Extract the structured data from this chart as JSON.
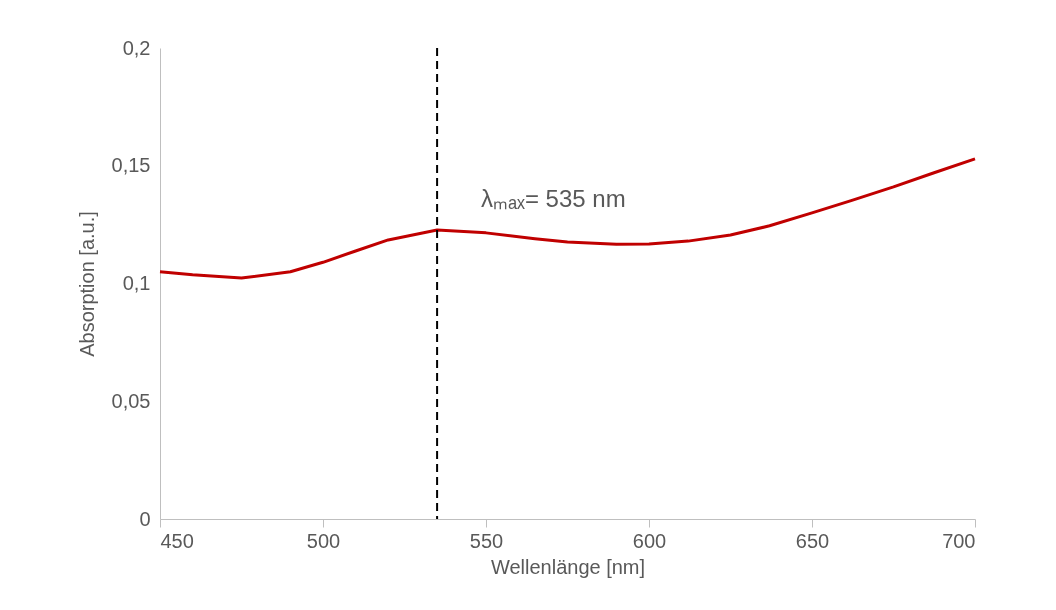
{
  "chart_data": {
    "type": "line",
    "xlabel": "Wellenlänge [nm]",
    "ylabel": "Absorption [a.u.]",
    "x": [
      450,
      460,
      475,
      490,
      500,
      510,
      520,
      535,
      550,
      565,
      575,
      590,
      600,
      612,
      625,
      637,
      650,
      662,
      675,
      687,
      700
    ],
    "series": [
      {
        "color": "#c00000",
        "values": [
          0.105,
          0.1037,
          0.1023,
          0.105,
          0.109,
          0.1138,
          0.1185,
          0.1227,
          0.1215,
          0.119,
          0.1176,
          0.1167,
          0.1168,
          0.118,
          0.1206,
          0.1245,
          0.13,
          0.1352,
          0.141,
          0.1468,
          0.1529
        ]
      }
    ],
    "xlim": [
      450,
      700
    ],
    "xticks": [
      450,
      500,
      550,
      600,
      650,
      700
    ],
    "ylim": [
      0,
      0.2
    ],
    "yticks": [
      {
        "value": 0,
        "label": "0"
      },
      {
        "value": 0.05,
        "label": "0,05"
      },
      {
        "value": 0.1,
        "label": "0,1"
      },
      {
        "value": 0.15,
        "label": "0,15"
      },
      {
        "value": 0.2,
        "label": "0,2"
      }
    ],
    "ref_lines": [
      {
        "axis": "x",
        "value": 535,
        "label": "λₘₐₓ= 535 nm",
        "color": "#000000",
        "line_style": "dashed"
      }
    ],
    "grid": false,
    "marker": "none",
    "line_style": "solid"
  }
}
